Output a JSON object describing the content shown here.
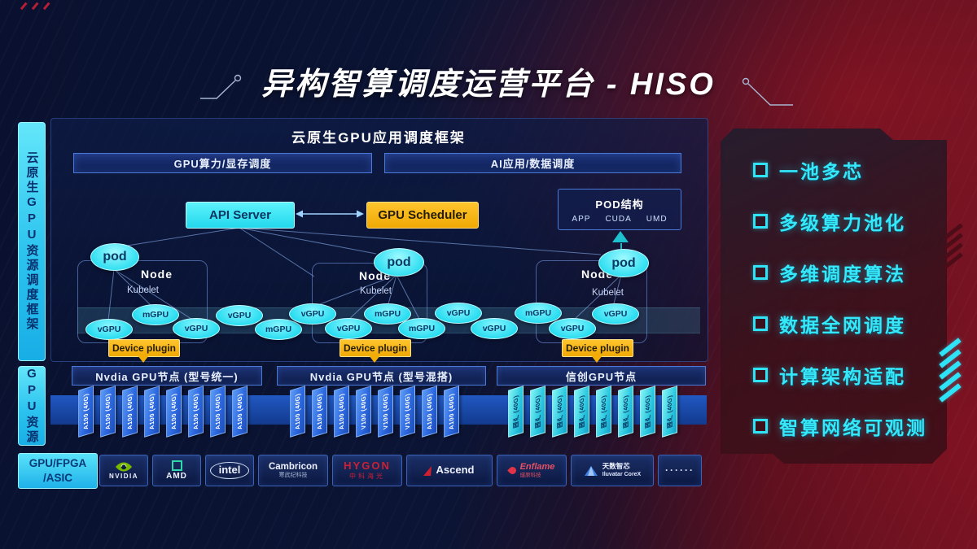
{
  "page": {
    "title": "异构智算调度运营平台 - HISO"
  },
  "left_rails": {
    "framework": "云原生GPU资源调度框架",
    "resources": "GPU资源"
  },
  "frame": {
    "header": "云原生GPU应用调度框架",
    "bars": [
      {
        "label": "GPU算力/显存调度"
      },
      {
        "label": "AI应用/数据调度"
      }
    ],
    "api_server": "API Server",
    "gpu_scheduler": "GPU Scheduler",
    "pod_struct": {
      "title": "POD结构",
      "layers": [
        "APP",
        "CUDA",
        "UMD"
      ]
    },
    "pod_label": "pod",
    "node_label": "Node",
    "kubelet_label": "Kubelet",
    "device_plugin_label": "Device plugin",
    "gpu_units": [
      "vGPU",
      "mGPU",
      "vGPU",
      "vGPU",
      "mGPU",
      "vGPU",
      "vGPU",
      "mGPU",
      "mGPU",
      "vGPU",
      "vGPU",
      "mGPU",
      "vGPU",
      "vGPU"
    ]
  },
  "gpu_nodes": [
    {
      "label": "Nvdia GPU节点 (型号统一)",
      "style": "nvidia",
      "cards": [
        "A100 (40G)",
        "A100 (40G)",
        "A100 (40G)",
        "A100 (40G)",
        "A100 (40G)",
        "A100 (40G)",
        "A100 (40G)",
        "A100 (40G)"
      ]
    },
    {
      "label": "Nvdia GPU节点 (型号混搭)",
      "style": "nvidia",
      "cards": [
        "A100 (40G)",
        "A100 (40G)",
        "A100 (40G)",
        "V100 (40G)",
        "V100 (40G)",
        "V100 (40G)",
        "A100 (40G)",
        "A100 (40G)"
      ]
    },
    {
      "label": "信创GPU节点",
      "style": "xinchuang",
      "cards": [
        "国产 (40G)",
        "国产 (40G)",
        "国产 (40G)",
        "国产 (40G)",
        "国产 (40G)",
        "国产 (40G)",
        "国产 (40G)",
        "国产 (40G)"
      ]
    }
  ],
  "hardware": {
    "label_line1": "GPU/FPGA",
    "label_line2": "/ASIC",
    "vendors": [
      {
        "logo": "nvidia",
        "name": "NVIDIA"
      },
      {
        "logo": "amd",
        "name": "AMD"
      },
      {
        "logo": "intel",
        "name": "intel"
      },
      {
        "logo": "cambricon",
        "name": "Cambricon",
        "sub": "寒武纪科技"
      },
      {
        "logo": "hygon",
        "name": "HYGON",
        "sub": "中科海光",
        "color": "#cf1f33"
      },
      {
        "logo": "ascend",
        "name": "Ascend"
      },
      {
        "logo": "enflame",
        "name": "Enflame",
        "sub": "燧原科技",
        "color": "#e55064"
      },
      {
        "logo": "iluvatar",
        "name": "天数智芯",
        "sub": "Iluvatar CoreX"
      },
      {
        "logo": "dots",
        "name": "······"
      }
    ]
  },
  "features": {
    "items": [
      "一池多芯",
      "多级算力池化",
      "多维调度算法",
      "数据全网调度",
      "计算架构适配",
      "智算网络可观测"
    ]
  },
  "colors": {
    "accent_cyan": "#2fe3f7",
    "accent_yellow": "#f6b40c",
    "nvidia_green": "#76b900",
    "card_blue": "#2f6fe0",
    "card_cyan": "#35dff0",
    "hygon_red": "#cf1f33",
    "panel_red": "#5a0f1d"
  }
}
